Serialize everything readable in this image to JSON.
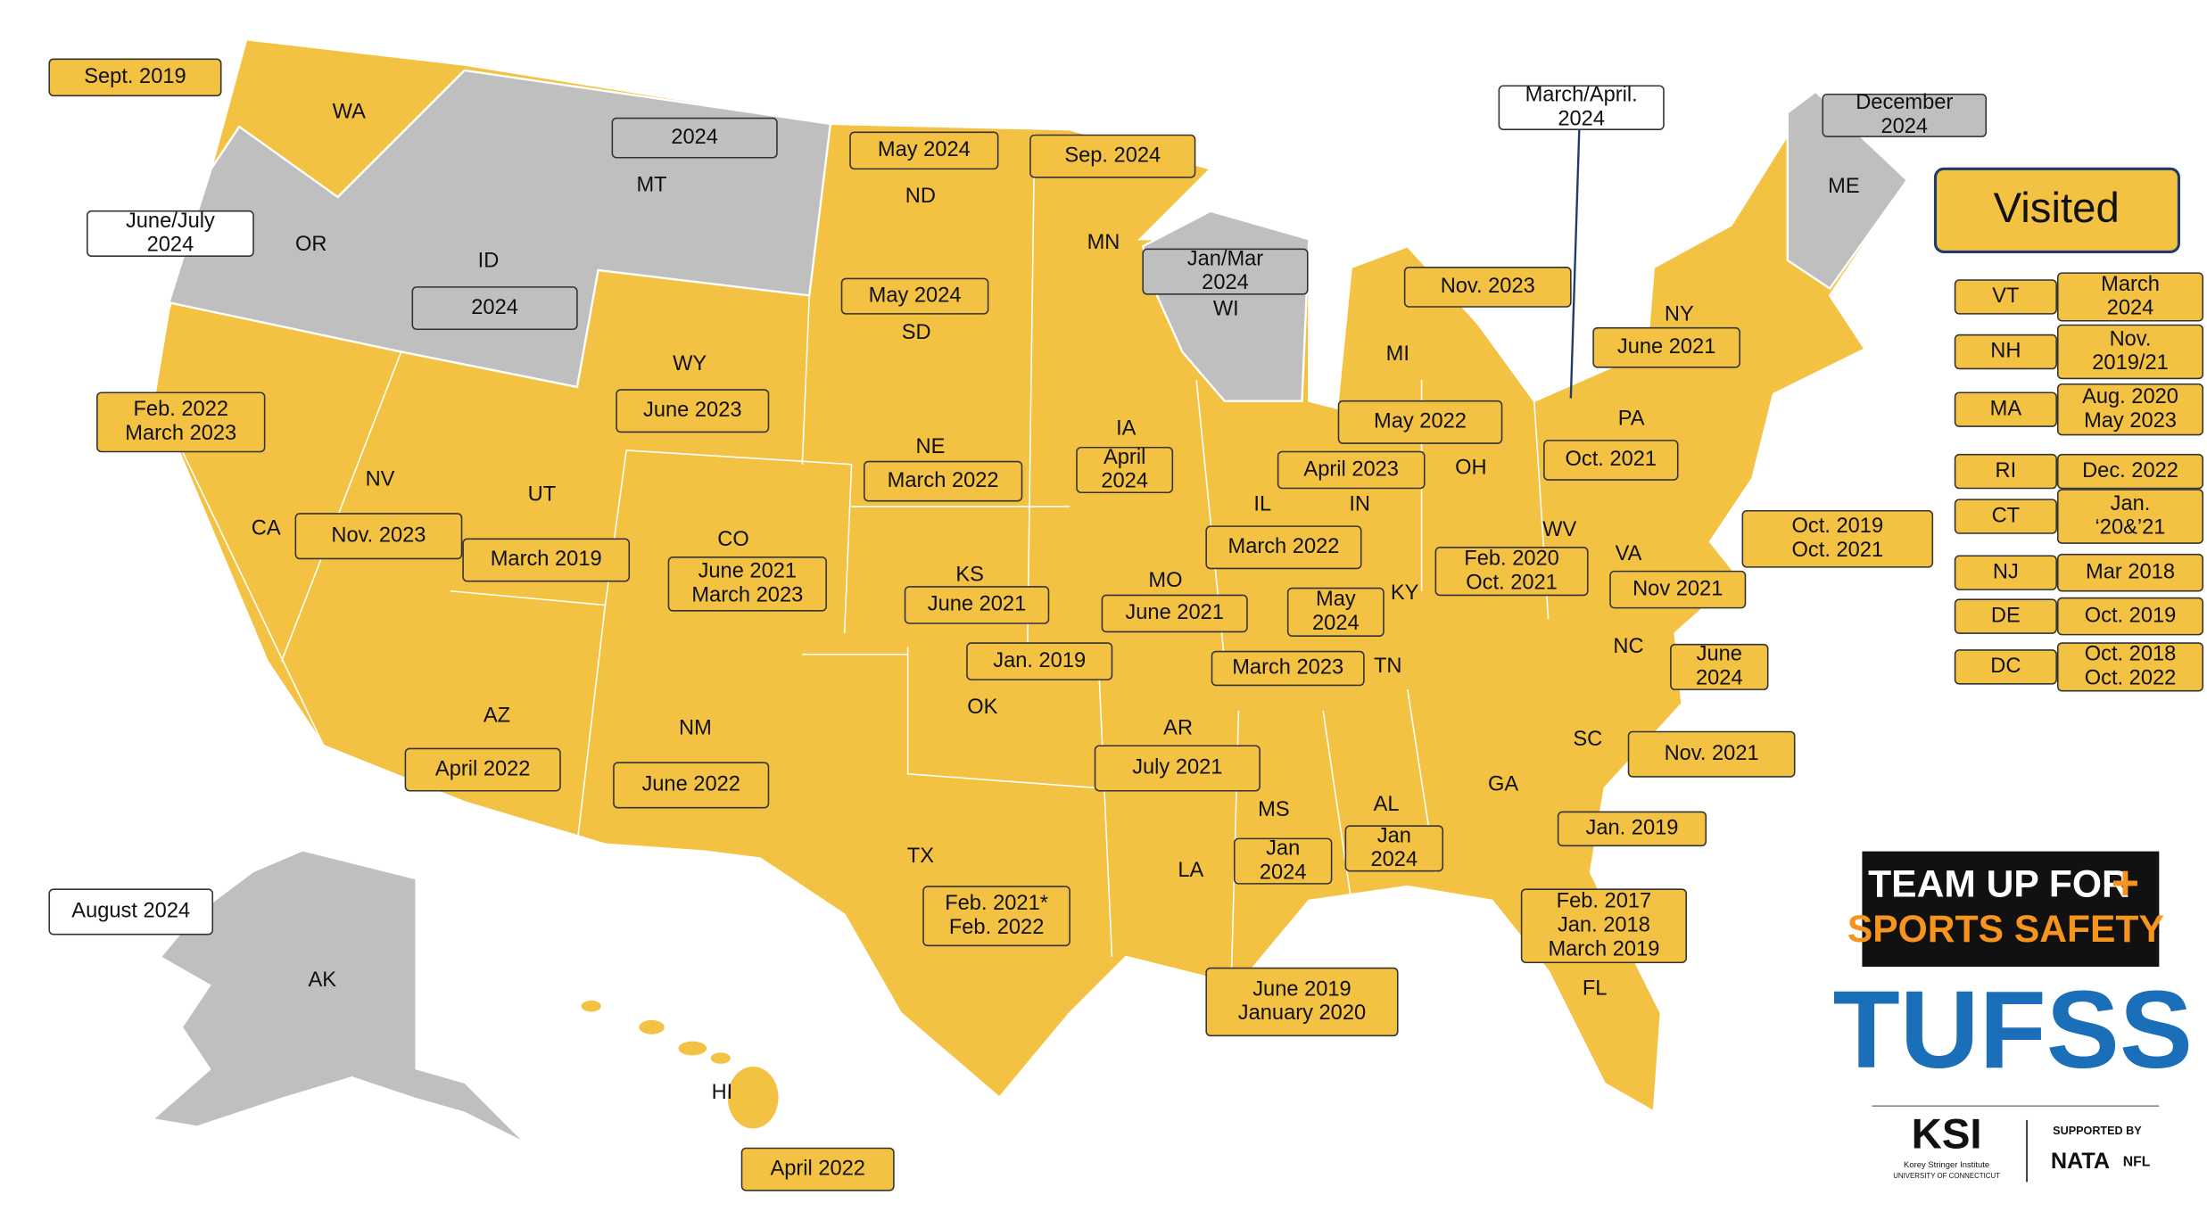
{
  "legend": {
    "label": "Visited",
    "fill": "#f4c242"
  },
  "states": [
    {
      "abbr": "WA",
      "dates": [
        "Sept. 2019"
      ],
      "fill": "#f4c242"
    },
    {
      "abbr": "OR",
      "dates": [
        "June/July",
        "2024"
      ],
      "fill": "#ffffff"
    },
    {
      "abbr": "ID",
      "dates": [
        "2024"
      ],
      "fill": "#bfbfbf"
    },
    {
      "abbr": "MT",
      "dates": [
        "2024"
      ],
      "fill": "#bfbfbf"
    },
    {
      "abbr": "ND",
      "dates": [
        "May 2024"
      ],
      "fill": "#f4c242"
    },
    {
      "abbr": "MN",
      "dates": [
        "Sep. 2024"
      ],
      "fill": "#f4c242"
    },
    {
      "abbr": "WI",
      "dates": [
        "Jan/Mar",
        "2024"
      ],
      "fill": "#bfbfbf"
    },
    {
      "abbr": "MI",
      "dates": [
        "Nov. 2023"
      ],
      "fill": "#f4c242"
    },
    {
      "abbr": "NY",
      "dates": [
        "June 2021"
      ],
      "fill": "#f4c242"
    },
    {
      "abbr": "PA",
      "dates": [
        "Oct. 2021"
      ],
      "fill": "#f4c242"
    },
    {
      "abbr": "ME",
      "dates": [
        "December",
        "2024"
      ],
      "fill": "#bfbfbf"
    },
    {
      "abbr": "SD",
      "dates": [
        "May 2024"
      ],
      "fill": "#f4c242"
    },
    {
      "abbr": "WY",
      "dates": [
        "June 2023"
      ],
      "fill": "#f4c242"
    },
    {
      "abbr": "NE",
      "dates": [
        "March 2022"
      ],
      "fill": "#f4c242"
    },
    {
      "abbr": "IA",
      "dates": [
        "April",
        "2024"
      ],
      "fill": "#f4c242"
    },
    {
      "abbr": "CA",
      "dates": [
        "Feb. 2022",
        "March 2023"
      ],
      "fill": "#f4c242"
    },
    {
      "abbr": "NV",
      "dates": [
        "Nov. 2023"
      ],
      "fill": "#f4c242"
    },
    {
      "abbr": "UT",
      "dates": [
        "March 2019"
      ],
      "fill": "#f4c242"
    },
    {
      "abbr": "CO",
      "dates": [
        "June 2021",
        "March 2023"
      ],
      "fill": "#f4c242"
    },
    {
      "abbr": "KS",
      "dates": [
        "June 2021"
      ],
      "fill": "#f4c242"
    },
    {
      "abbr": "MO",
      "dates": [
        "June 2021"
      ],
      "fill": "#f4c242"
    },
    {
      "abbr": "IL",
      "dates": [
        "March 2022"
      ],
      "fill": "#f4c242"
    },
    {
      "abbr": "IN",
      "dates": [
        "April 2023"
      ],
      "fill": "#f4c242"
    },
    {
      "abbr": "OH",
      "dates": [
        "May 2022"
      ],
      "fill": "#f4c242"
    },
    {
      "abbr": "KY",
      "dates": [
        "May",
        "2024"
      ],
      "fill": "#f4c242"
    },
    {
      "abbr": "WV",
      "dates": [
        "Feb. 2020",
        "Oct. 2021"
      ],
      "fill": "#f4c242"
    },
    {
      "abbr": "VA",
      "dates": [
        "Nov 2021"
      ],
      "fill": "#f4c242"
    },
    {
      "abbr": "TN",
      "dates": [
        "March 2023"
      ],
      "fill": "#f4c242"
    },
    {
      "abbr": "OK",
      "dates": [
        "Jan. 2019"
      ],
      "fill": "#f4c242"
    },
    {
      "abbr": "NC",
      "dates": [
        "June",
        "2024"
      ],
      "fill": "#f4c242"
    },
    {
      "abbr": "AR",
      "dates": [
        "July 2021"
      ],
      "fill": "#f4c242"
    },
    {
      "abbr": "AZ",
      "dates": [
        "April 2022"
      ],
      "fill": "#f4c242"
    },
    {
      "abbr": "NM",
      "dates": [
        "June 2022"
      ],
      "fill": "#f4c242"
    },
    {
      "abbr": "SC",
      "dates": [
        "Nov. 2021"
      ],
      "fill": "#f4c242"
    },
    {
      "abbr": "GA",
      "dates": [
        "Jan. 2019"
      ],
      "fill": "#f4c242"
    },
    {
      "abbr": "MS",
      "dates": [
        "Jan",
        "2024"
      ],
      "fill": "#f4c242"
    },
    {
      "abbr": "AL",
      "dates": [
        "Jan",
        "2024"
      ],
      "fill": "#f4c242"
    },
    {
      "abbr": "TX",
      "dates": [
        "Feb. 2021*",
        "Feb. 2022"
      ],
      "fill": "#f4c242"
    },
    {
      "abbr": "LA",
      "dates": [
        "June 2019",
        "January 2020"
      ],
      "fill": "#f4c242"
    },
    {
      "abbr": "FL",
      "dates": [
        "Feb. 2017",
        "Jan. 2018",
        "March 2019"
      ],
      "fill": "#f4c242"
    },
    {
      "abbr": "AK",
      "dates": [
        "August 2024"
      ],
      "fill": "#ffffff"
    },
    {
      "abbr": "HI",
      "dates": [
        "April 2022"
      ],
      "fill": "#f4c242"
    }
  ],
  "callouts": [
    {
      "dates": [
        "Oct. 2019",
        "Oct. 2021"
      ],
      "fill": "#f4c242"
    },
    {
      "dates": [
        "March/April.",
        "2024"
      ],
      "fill": "#ffffff"
    }
  ],
  "small_states": [
    {
      "abbr": "VT",
      "dates": [
        "March",
        "2024"
      ]
    },
    {
      "abbr": "NH",
      "dates": [
        "Nov.",
        "2019/21"
      ]
    },
    {
      "abbr": "MA",
      "dates": [
        "Aug. 2020",
        "May 2023"
      ]
    },
    {
      "abbr": "RI",
      "dates": [
        "Dec. 2022"
      ]
    },
    {
      "abbr": "CT",
      "dates": [
        "Jan.",
        "‘20&’21"
      ]
    },
    {
      "abbr": "NJ",
      "dates": [
        "Mar 2018"
      ]
    },
    {
      "abbr": "DE",
      "dates": [
        "Oct. 2019"
      ]
    },
    {
      "abbr": "DC",
      "dates": [
        "Oct. 2018",
        "Oct. 2022"
      ]
    }
  ],
  "logo": {
    "line1": "TEAM UP FOR",
    "line2": "SPORTS SAFETY",
    "acronym": "TUFSS",
    "institute": "KSI",
    "institute_name": "Korey Stringer Institute",
    "university": "UNIVERSITY OF CONNECTICUT",
    "supported": "SUPPORTED BY",
    "partner1": "NATA",
    "partner2": "NFL"
  }
}
